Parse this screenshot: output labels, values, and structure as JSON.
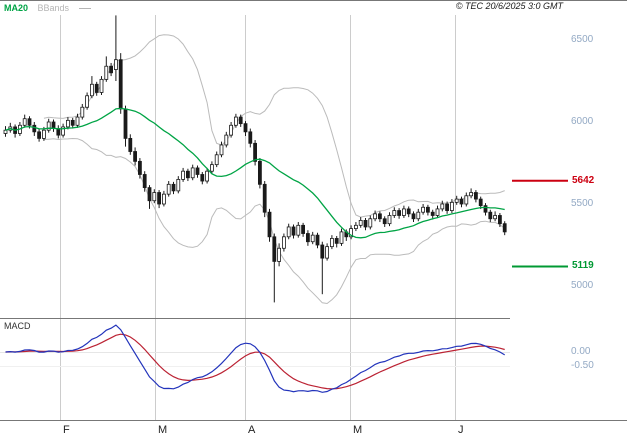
{
  "header": {
    "copyright": "© TEC 20/6/2025 3:0 GMT"
  },
  "chart_data": {
    "type": "candlestick",
    "title": "",
    "panels": [
      "price",
      "macd"
    ],
    "x_axis": {
      "ticks": [
        "F",
        "M",
        "A",
        "M",
        "J"
      ]
    },
    "price_axis": {
      "ticks": [
        "6500",
        "6000",
        "5500",
        "5000"
      ],
      "range": [
        4750,
        6650
      ]
    },
    "macd_axis": {
      "ticks": [
        "0.00",
        "-0.50"
      ]
    },
    "levels": {
      "resistance": {
        "label": "5642",
        "value": 5642,
        "color": "#cc0011"
      },
      "support": {
        "label": "5119",
        "value": 5119,
        "color": "#009933"
      }
    },
    "indicators": {
      "ma20": {
        "label": "MA20",
        "period": 20,
        "color": "#00a445"
      },
      "bbands": {
        "label": "BBands",
        "color": "#bbbbbb"
      },
      "macd": {
        "label": "MACD",
        "fast": 12,
        "slow": 26,
        "signal": 9,
        "line_color": "#2233bb",
        "signal_color": "#bb2233"
      }
    },
    "style": {
      "candle_color": "#1a1a1a",
      "candle_up_fill": "#ffffff",
      "bband_color": "#bbbbbb",
      "grid_color": "#cccccc",
      "axis_text_color": "#93a9c4",
      "frame_color": "#777777"
    },
    "candles": [
      [
        5930,
        5975,
        5910,
        5950
      ],
      [
        5950,
        5995,
        5935,
        5970
      ],
      [
        5970,
        5985,
        5905,
        5930
      ],
      [
        5930,
        6000,
        5915,
        5980
      ],
      [
        5980,
        6045,
        5965,
        6020
      ],
      [
        6020,
        6035,
        5960,
        5980
      ],
      [
        5980,
        6000,
        5915,
        5940
      ],
      [
        5940,
        5960,
        5880,
        5900
      ],
      [
        5900,
        5970,
        5885,
        5950
      ],
      [
        5950,
        6020,
        5935,
        6000
      ],
      [
        6000,
        6015,
        5940,
        5960
      ],
      [
        5960,
        5980,
        5900,
        5920
      ],
      [
        5920,
        5990,
        5905,
        5970
      ],
      [
        5970,
        6030,
        5955,
        6010
      ],
      [
        6010,
        6025,
        5960,
        5980
      ],
      [
        5980,
        6050,
        5965,
        6030
      ],
      [
        6030,
        6110,
        6015,
        6090
      ],
      [
        6090,
        6180,
        6075,
        6160
      ],
      [
        6160,
        6280,
        6145,
        6230
      ],
      [
        6230,
        6245,
        6160,
        6180
      ],
      [
        6180,
        6280,
        6165,
        6260
      ],
      [
        6260,
        6400,
        6245,
        6340
      ],
      [
        6340,
        6360,
        6280,
        6300
      ],
      [
        6320,
        6650,
        6250,
        6380
      ],
      [
        6380,
        6420,
        6050,
        6080
      ],
      [
        6080,
        6100,
        5850,
        5900
      ],
      [
        5900,
        5925,
        5800,
        5820
      ],
      [
        5820,
        5845,
        5735,
        5760
      ],
      [
        5760,
        5780,
        5655,
        5680
      ],
      [
        5680,
        5700,
        5575,
        5600
      ],
      [
        5600,
        5615,
        5470,
        5520
      ],
      [
        5520,
        5590,
        5505,
        5570
      ],
      [
        5570,
        5585,
        5475,
        5500
      ],
      [
        5500,
        5580,
        5485,
        5560
      ],
      [
        5560,
        5640,
        5545,
        5620
      ],
      [
        5620,
        5635,
        5560,
        5580
      ],
      [
        5580,
        5670,
        5565,
        5650
      ],
      [
        5650,
        5720,
        5635,
        5700
      ],
      [
        5700,
        5715,
        5640,
        5660
      ],
      [
        5660,
        5740,
        5645,
        5720
      ],
      [
        5720,
        5735,
        5660,
        5680
      ],
      [
        5680,
        5695,
        5620,
        5640
      ],
      [
        5640,
        5720,
        5625,
        5700
      ],
      [
        5700,
        5760,
        5685,
        5740
      ],
      [
        5740,
        5820,
        5725,
        5800
      ],
      [
        5800,
        5880,
        5785,
        5860
      ],
      [
        5860,
        5940,
        5845,
        5920
      ],
      [
        5920,
        6000,
        5905,
        5980
      ],
      [
        5980,
        6050,
        5965,
        6030
      ],
      [
        6030,
        6045,
        5970,
        5990
      ],
      [
        5990,
        6005,
        5915,
        5940
      ],
      [
        5940,
        5960,
        5845,
        5870
      ],
      [
        5870,
        5890,
        5735,
        5760
      ],
      [
        5760,
        5780,
        5595,
        5620
      ],
      [
        5620,
        5640,
        5420,
        5450
      ],
      [
        5450,
        5470,
        5270,
        5300
      ],
      [
        5300,
        5320,
        4900,
        5150
      ],
      [
        5150,
        5260,
        5120,
        5230
      ],
      [
        5230,
        5320,
        5210,
        5300
      ],
      [
        5300,
        5380,
        5285,
        5360
      ],
      [
        5360,
        5375,
        5290,
        5310
      ],
      [
        5310,
        5390,
        5295,
        5370
      ],
      [
        5370,
        5385,
        5300,
        5320
      ],
      [
        5320,
        5340,
        5245,
        5270
      ],
      [
        5270,
        5330,
        5255,
        5310
      ],
      [
        5310,
        5325,
        5230,
        5250
      ],
      [
        5250,
        5270,
        4950,
        5170
      ],
      [
        5170,
        5260,
        5155,
        5240
      ],
      [
        5240,
        5310,
        5225,
        5290
      ],
      [
        5290,
        5305,
        5235,
        5260
      ],
      [
        5260,
        5350,
        5245,
        5330
      ],
      [
        5330,
        5345,
        5275,
        5300
      ],
      [
        5300,
        5370,
        5285,
        5350
      ],
      [
        5350,
        5390,
        5335,
        5370
      ],
      [
        5370,
        5420,
        5355,
        5400
      ],
      [
        5400,
        5415,
        5340,
        5360
      ],
      [
        5360,
        5430,
        5345,
        5410
      ],
      [
        5410,
        5460,
        5395,
        5440
      ],
      [
        5440,
        5455,
        5390,
        5410
      ],
      [
        5410,
        5425,
        5360,
        5380
      ],
      [
        5380,
        5450,
        5365,
        5430
      ],
      [
        5430,
        5480,
        5415,
        5460
      ],
      [
        5460,
        5475,
        5410,
        5430
      ],
      [
        5430,
        5490,
        5415,
        5470
      ],
      [
        5470,
        5485,
        5420,
        5440
      ],
      [
        5440,
        5455,
        5390,
        5410
      ],
      [
        5410,
        5470,
        5395,
        5450
      ],
      [
        5450,
        5500,
        5435,
        5480
      ],
      [
        5480,
        5495,
        5430,
        5450
      ],
      [
        5450,
        5465,
        5405,
        5430
      ],
      [
        5430,
        5490,
        5415,
        5470
      ],
      [
        5470,
        5520,
        5455,
        5500
      ],
      [
        5500,
        5515,
        5440,
        5460
      ],
      [
        5460,
        5530,
        5445,
        5510
      ],
      [
        5510,
        5550,
        5495,
        5530
      ],
      [
        5530,
        5545,
        5480,
        5500
      ],
      [
        5500,
        5570,
        5485,
        5550
      ],
      [
        5550,
        5595,
        5535,
        5570
      ],
      [
        5570,
        5585,
        5510,
        5530
      ],
      [
        5530,
        5545,
        5470,
        5490
      ],
      [
        5490,
        5505,
        5430,
        5450
      ],
      [
        5450,
        5465,
        5390,
        5410
      ],
      [
        5410,
        5455,
        5395,
        5430
      ],
      [
        5430,
        5445,
        5360,
        5380
      ],
      [
        5380,
        5395,
        5310,
        5330
      ]
    ]
  }
}
